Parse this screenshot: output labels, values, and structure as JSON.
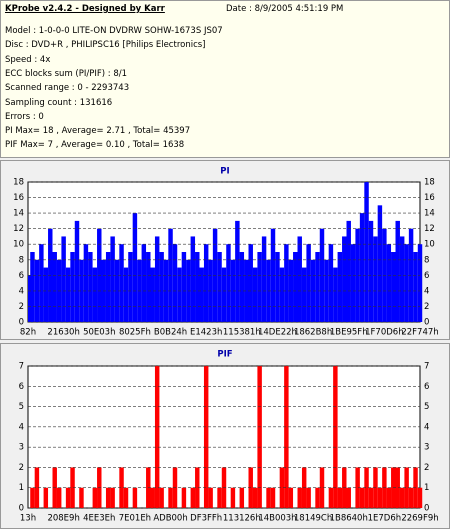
{
  "header": {
    "title": "KProbe v2.4.2 - Designed by Karr",
    "date": "Date : 8/9/2005 4:51:19 PM",
    "lines": [
      "Model : 1-0-0-0 LITE-ON DVDRW SOHW-1673S JS07",
      "Disc : DVD+R , PHILIPSC16 [Philips Electronics]",
      "Speed : 4x",
      "ECC blocks sum (PI/PIF) : 8/1",
      "Scanned range : 0 - 2293743",
      "Sampling count : 131616",
      "Errors : 0",
      "PI Max= 18 , Average= 2.71 , Total= 45397",
      "PIF Max= 7 , Average= 0.10 , Total= 1638"
    ]
  },
  "chart_data": [
    {
      "type": "bar",
      "title": "PI",
      "color": "#0000ff",
      "categories": [
        "82h",
        null,
        null,
        null,
        null,
        null,
        null,
        null,
        "21630h",
        null,
        null,
        null,
        null,
        null,
        null,
        null,
        "50E03h",
        null,
        null,
        null,
        null,
        null,
        null,
        null,
        "8025Fh",
        null,
        null,
        null,
        null,
        null,
        null,
        null,
        "B0B24h",
        null,
        null,
        null,
        null,
        null,
        null,
        null,
        "E1423h",
        null,
        null,
        null,
        null,
        null,
        null,
        null,
        "115381h",
        null,
        null,
        null,
        null,
        null,
        null,
        null,
        "14DE22h",
        null,
        null,
        null,
        null,
        null,
        null,
        null,
        "1862B8h",
        null,
        null,
        null,
        null,
        null,
        null,
        null,
        "1BE95Fh",
        null,
        null,
        null,
        null,
        null,
        null,
        null,
        "1F70D6h",
        null,
        null,
        null,
        null,
        null,
        null,
        null,
        "22F747h"
      ],
      "values": [
        6,
        9,
        8,
        10,
        7,
        12,
        9,
        8,
        11,
        7,
        9,
        13,
        8,
        10,
        9,
        7,
        12,
        8,
        9,
        11,
        8,
        10,
        7,
        9,
        14,
        8,
        10,
        9,
        7,
        11,
        9,
        8,
        12,
        10,
        7,
        9,
        8,
        11,
        9,
        7,
        10,
        8,
        12,
        9,
        7,
        10,
        8,
        13,
        9,
        8,
        10,
        7,
        9,
        11,
        8,
        12,
        9,
        7,
        10,
        8,
        9,
        11,
        7,
        10,
        8,
        9,
        12,
        8,
        10,
        7,
        9,
        11,
        13,
        10,
        12,
        14,
        18,
        13,
        11,
        15,
        12,
        10,
        9,
        13,
        11,
        10,
        12,
        9,
        10
      ],
      "ylim": [
        0,
        18
      ],
      "yticks": [
        0,
        2,
        4,
        6,
        8,
        10,
        12,
        14,
        16,
        18
      ],
      "grid": true
    },
    {
      "type": "bar",
      "title": "PIF",
      "color": "#ff0000",
      "categories": [
        "13h",
        null,
        null,
        null,
        null,
        null,
        null,
        null,
        "208E9h",
        null,
        null,
        null,
        null,
        null,
        null,
        null,
        "4EE3Eh",
        null,
        null,
        null,
        null,
        null,
        null,
        null,
        "7E01Eh",
        null,
        null,
        null,
        null,
        null,
        null,
        null,
        "ADB00h",
        null,
        null,
        null,
        null,
        null,
        null,
        null,
        "DF3FFh",
        null,
        null,
        null,
        null,
        null,
        null,
        null,
        "113126h",
        null,
        null,
        null,
        null,
        null,
        null,
        null,
        "14B003h",
        null,
        null,
        null,
        null,
        null,
        null,
        null,
        "18149Ch",
        null,
        null,
        null,
        null,
        null,
        null,
        null,
        "1B8640h",
        null,
        null,
        null,
        null,
        null,
        null,
        null,
        "1E7D6h",
        null,
        null,
        null,
        null,
        null,
        null,
        null,
        "2269F9h"
      ],
      "values": [
        0,
        1,
        2,
        0,
        1,
        0,
        2,
        1,
        0,
        1,
        2,
        0,
        1,
        0,
        0,
        1,
        2,
        0,
        1,
        1,
        0,
        2,
        1,
        0,
        1,
        0,
        0,
        2,
        1,
        7,
        1,
        0,
        1,
        2,
        0,
        1,
        0,
        1,
        2,
        0,
        7,
        1,
        0,
        1,
        2,
        0,
        1,
        0,
        1,
        0,
        2,
        1,
        7,
        0,
        1,
        1,
        0,
        2,
        7,
        1,
        0,
        1,
        2,
        1,
        0,
        1,
        2,
        0,
        1,
        7,
        1,
        2,
        1,
        0,
        2,
        1,
        2,
        1,
        2,
        1,
        2,
        1,
        2,
        2,
        1,
        2,
        1,
        2,
        1
      ],
      "ylim": [
        0,
        7
      ],
      "yticks": [
        0,
        1,
        2,
        3,
        4,
        5,
        6,
        7
      ],
      "grid": true
    }
  ]
}
